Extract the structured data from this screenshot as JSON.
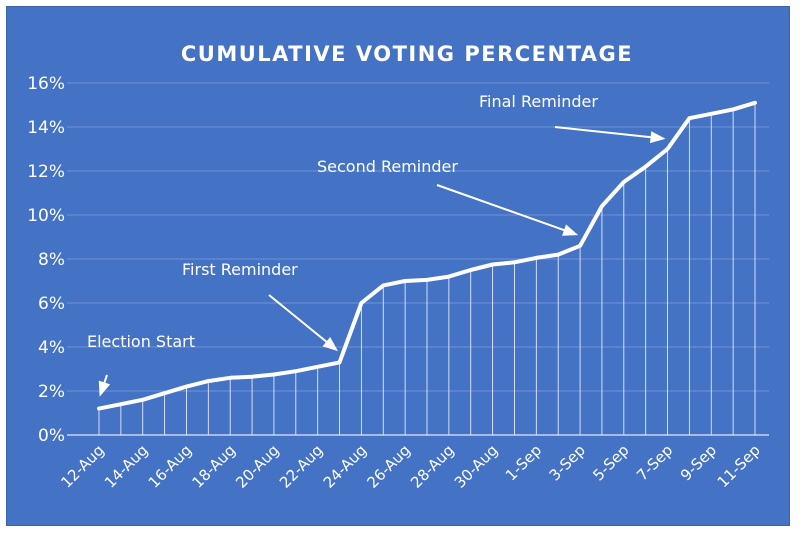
{
  "chart_data": {
    "type": "line",
    "title": "CUMULATIVE VOTING PERCENTAGE",
    "xlabel": "",
    "ylabel": "",
    "ylim": [
      0,
      16
    ],
    "yticks": [
      "0%",
      "2%",
      "4%",
      "6%",
      "8%",
      "10%",
      "12%",
      "14%",
      "16%"
    ],
    "xtick_labels": [
      "12-Aug",
      "14-Aug",
      "16-Aug",
      "18-Aug",
      "20-Aug",
      "22-Aug",
      "24-Aug",
      "26-Aug",
      "28-Aug",
      "30-Aug",
      "1-Sep",
      "3-Sep",
      "5-Sep",
      "7-Sep",
      "9-Sep",
      "11-Sep"
    ],
    "x": [
      "12-Aug",
      "13-Aug",
      "14-Aug",
      "15-Aug",
      "16-Aug",
      "17-Aug",
      "18-Aug",
      "19-Aug",
      "20-Aug",
      "21-Aug",
      "22-Aug",
      "23-Aug",
      "24-Aug",
      "25-Aug",
      "26-Aug",
      "27-Aug",
      "28-Aug",
      "29-Aug",
      "30-Aug",
      "31-Aug",
      "1-Sep",
      "2-Sep",
      "3-Sep",
      "4-Sep",
      "5-Sep",
      "6-Sep",
      "7-Sep",
      "8-Sep",
      "9-Sep",
      "10-Sep",
      "11-Sep"
    ],
    "values": [
      1.2,
      1.4,
      1.6,
      1.9,
      2.2,
      2.45,
      2.6,
      2.65,
      2.75,
      2.9,
      3.1,
      3.3,
      6.0,
      6.8,
      7.0,
      7.05,
      7.2,
      7.5,
      7.75,
      7.85,
      8.05,
      8.2,
      8.6,
      10.4,
      11.5,
      12.2,
      13.0,
      14.4,
      14.6,
      14.8,
      15.1
    ],
    "grid": true,
    "drop_lines": true,
    "annotations": [
      {
        "text": "Election Start",
        "target": "12-Aug"
      },
      {
        "text": "First Reminder",
        "target": "23-Aug"
      },
      {
        "text": "Second Reminder",
        "target": "3-Sep"
      },
      {
        "text": "Final Reminder",
        "target": "7-Sep"
      }
    ],
    "colors": {
      "background": "#4472c4",
      "line": "#ffffff",
      "grid": "#6f93d6"
    }
  }
}
